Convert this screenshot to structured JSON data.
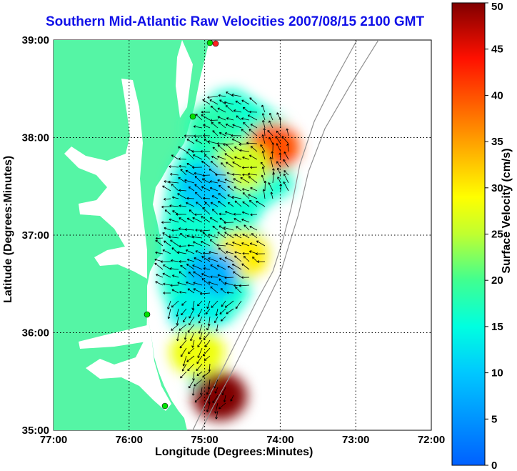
{
  "title": "Southern Mid-Atlantic Raw Velocities 2007/08/15 2100 GMT",
  "x_axis": {
    "label": "Longitude (Degrees:Minutes)",
    "ticks": [
      "77:00",
      "76:00",
      "75:00",
      "74:00",
      "73:00",
      "72:00"
    ]
  },
  "y_axis": {
    "label": "Latitude (Degrees:Minutes)",
    "ticks": [
      "39:00",
      "38:00",
      "37:00",
      "36:00",
      "35:00"
    ]
  },
  "colorbar": {
    "label": "Surface Velocity (cm/s)",
    "ticks": [
      "50",
      "45",
      "40",
      "35",
      "30",
      "25",
      "20",
      "15",
      "10",
      "5",
      "0"
    ],
    "range": [
      0,
      50
    ]
  },
  "colors": {
    "land": "#55f5a5",
    "title": "#1010e8",
    "station": "#00e000",
    "station_alt": "#ff2020"
  },
  "chart_data": {
    "type": "heatmap",
    "title": "Southern Mid-Atlantic Raw Velocities 2007/08/15 2100 GMT",
    "xlabel": "Longitude (Degrees:Minutes)",
    "ylabel": "Latitude (Degrees:Minutes)",
    "xlim": [
      -77,
      -72
    ],
    "ylim": [
      35,
      39
    ],
    "value_label": "Surface Velocity (cm/s)",
    "value_range": [
      0,
      50
    ],
    "grid": true,
    "regions": [
      {
        "lon": -74.1,
        "lat": 37.9,
        "speed": 40
      },
      {
        "lon": -74.5,
        "lat": 37.7,
        "speed": 26
      },
      {
        "lon": -74.9,
        "lat": 38.1,
        "speed": 18
      },
      {
        "lon": -75.0,
        "lat": 37.5,
        "speed": 10
      },
      {
        "lon": -74.5,
        "lat": 36.8,
        "speed": 30
      },
      {
        "lon": -74.9,
        "lat": 36.6,
        "speed": 8
      },
      {
        "lon": -75.1,
        "lat": 36.2,
        "speed": 14
      },
      {
        "lon": -75.1,
        "lat": 35.8,
        "speed": 28
      },
      {
        "lon": -74.8,
        "lat": 35.35,
        "speed": 50
      }
    ]
  }
}
